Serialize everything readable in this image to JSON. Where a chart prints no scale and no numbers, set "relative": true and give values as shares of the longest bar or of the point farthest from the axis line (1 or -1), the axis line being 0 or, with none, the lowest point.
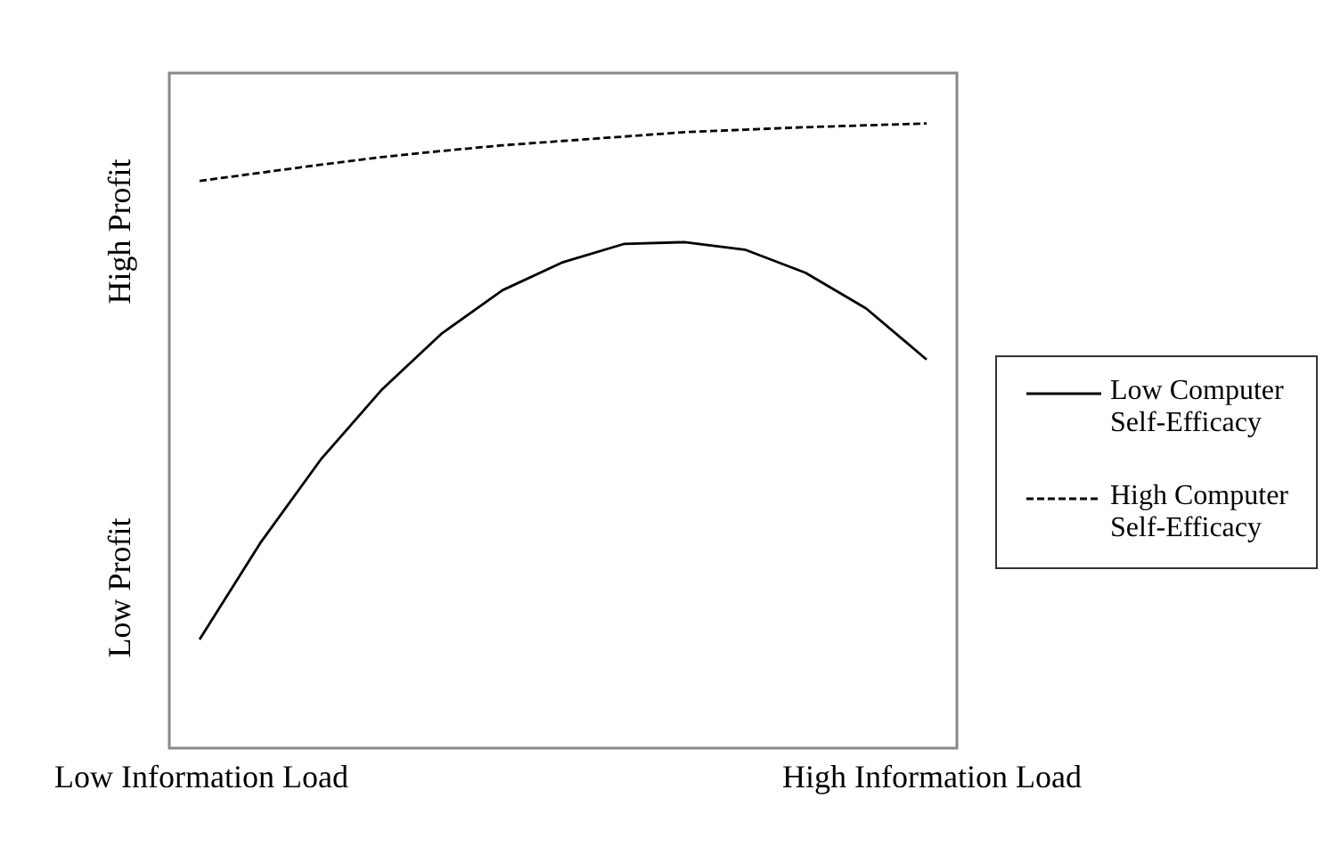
{
  "chart_data": {
    "type": "line",
    "relative": true,
    "categories": [
      null,
      null,
      null,
      null,
      null,
      null,
      null,
      null,
      null,
      null,
      null,
      null,
      null
    ],
    "series": [
      {
        "name": "Low Computer Self-Efficacy",
        "color": "#000000",
        "line_style": "solid",
        "values": [
          0.174,
          0.328,
          0.462,
          0.573,
          0.664,
          0.733,
          0.778,
          0.807,
          0.81,
          0.798,
          0.761,
          0.704,
          0.622
        ]
      },
      {
        "name": "High Computer Self-Efficacy",
        "color": "#000000",
        "line_style": "dashed",
        "values": [
          0.908,
          0.921,
          0.934,
          0.946,
          0.956,
          0.965,
          0.972,
          0.979,
          0.986,
          0.99,
          0.994,
          0.997,
          1
        ]
      }
    ],
    "annotations": [
      "Low Information Load",
      "High Information Load",
      "Low Profit",
      "High Profit"
    ],
    "legend": "right",
    "grid": false,
    "marker": "none"
  }
}
